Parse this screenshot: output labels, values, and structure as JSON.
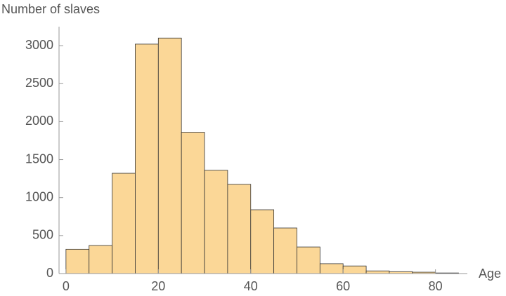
{
  "chart_data": {
    "type": "histogram",
    "x_label": "Age",
    "y_label": "Number of slaves",
    "bins": [
      0,
      5,
      10,
      15,
      20,
      25,
      30,
      35,
      40,
      45,
      50,
      55,
      60,
      65,
      70,
      75,
      80,
      85
    ],
    "counts": [
      320,
      370,
      1320,
      3020,
      3100,
      1860,
      1360,
      1175,
      840,
      600,
      350,
      130,
      100,
      35,
      25,
      18,
      8
    ],
    "color": "#fbd797",
    "edge_color": "#333333",
    "xlim": [
      -1.5,
      86.9
    ],
    "ylim": [
      0,
      3250
    ],
    "xticks": [
      0,
      20,
      40,
      60,
      80
    ],
    "yticks": [
      0,
      500,
      1000,
      1500,
      2000,
      2500,
      3000
    ]
  }
}
